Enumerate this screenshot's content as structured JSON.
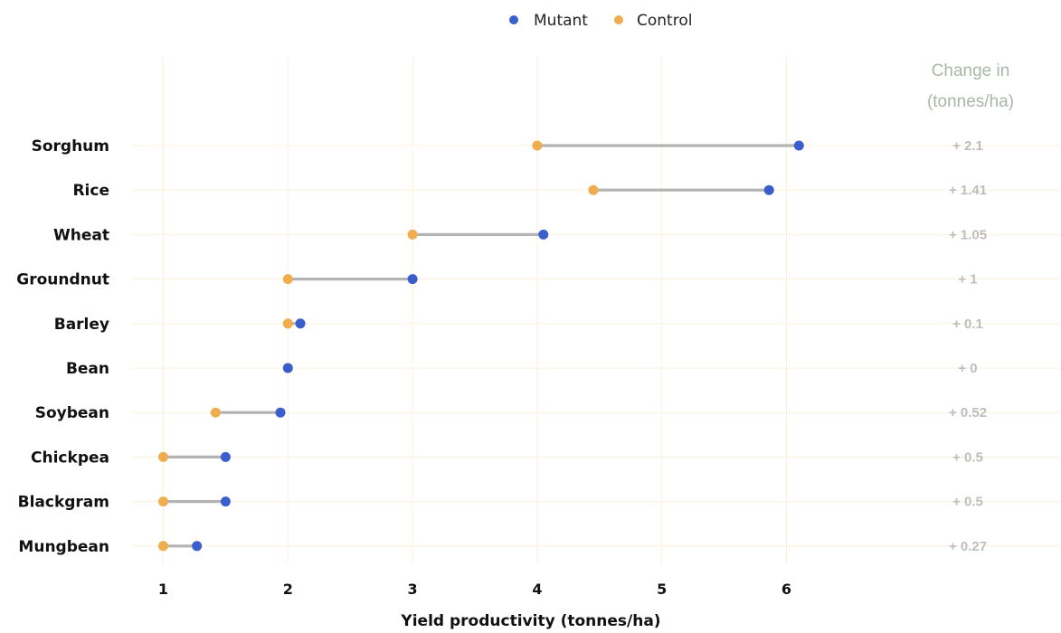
{
  "chart_data": {
    "type": "dumbbell",
    "xlabel": "Yield productivity (tonnes/ha)",
    "xlim": [
      0.75,
      7.4
    ],
    "xticks": [
      "1",
      "2",
      "3",
      "4",
      "5",
      "6"
    ],
    "legend": {
      "position": "top",
      "items": [
        {
          "name": "Mutant",
          "color": "#3a5fcd"
        },
        {
          "name": "Control",
          "color": "#f0ad4e"
        }
      ]
    },
    "change_column_title": [
      "Change in",
      "(tonnes/ha)"
    ],
    "grid": true,
    "categories": [
      "Sorghum",
      "Rice",
      "Wheat",
      "Groundnut",
      "Barley",
      "Bean",
      "Soybean",
      "Chickpea",
      "Blackgram",
      "Mungbean"
    ],
    "series": [
      {
        "name": "Control",
        "values": [
          4.0,
          4.45,
          3.0,
          2.0,
          2.0,
          2.0,
          1.42,
          1.0,
          1.0,
          1.0
        ]
      },
      {
        "name": "Mutant",
        "values": [
          6.1,
          5.86,
          4.05,
          3.0,
          2.1,
          2.0,
          1.94,
          1.5,
          1.5,
          1.27
        ]
      }
    ],
    "change_labels": [
      "+ 2.1",
      "+ 1.41",
      "+ 1.05",
      "+ 1",
      "+ 0.1",
      "+ 0",
      "+ 0.52",
      "+ 0.5",
      "+ 0.5",
      "+ 0.27"
    ],
    "colors": {
      "mutant": "#3a5fcd",
      "control": "#f0ad4e",
      "segment": "#b3b3b3",
      "grid": "#fdf1dc"
    }
  }
}
